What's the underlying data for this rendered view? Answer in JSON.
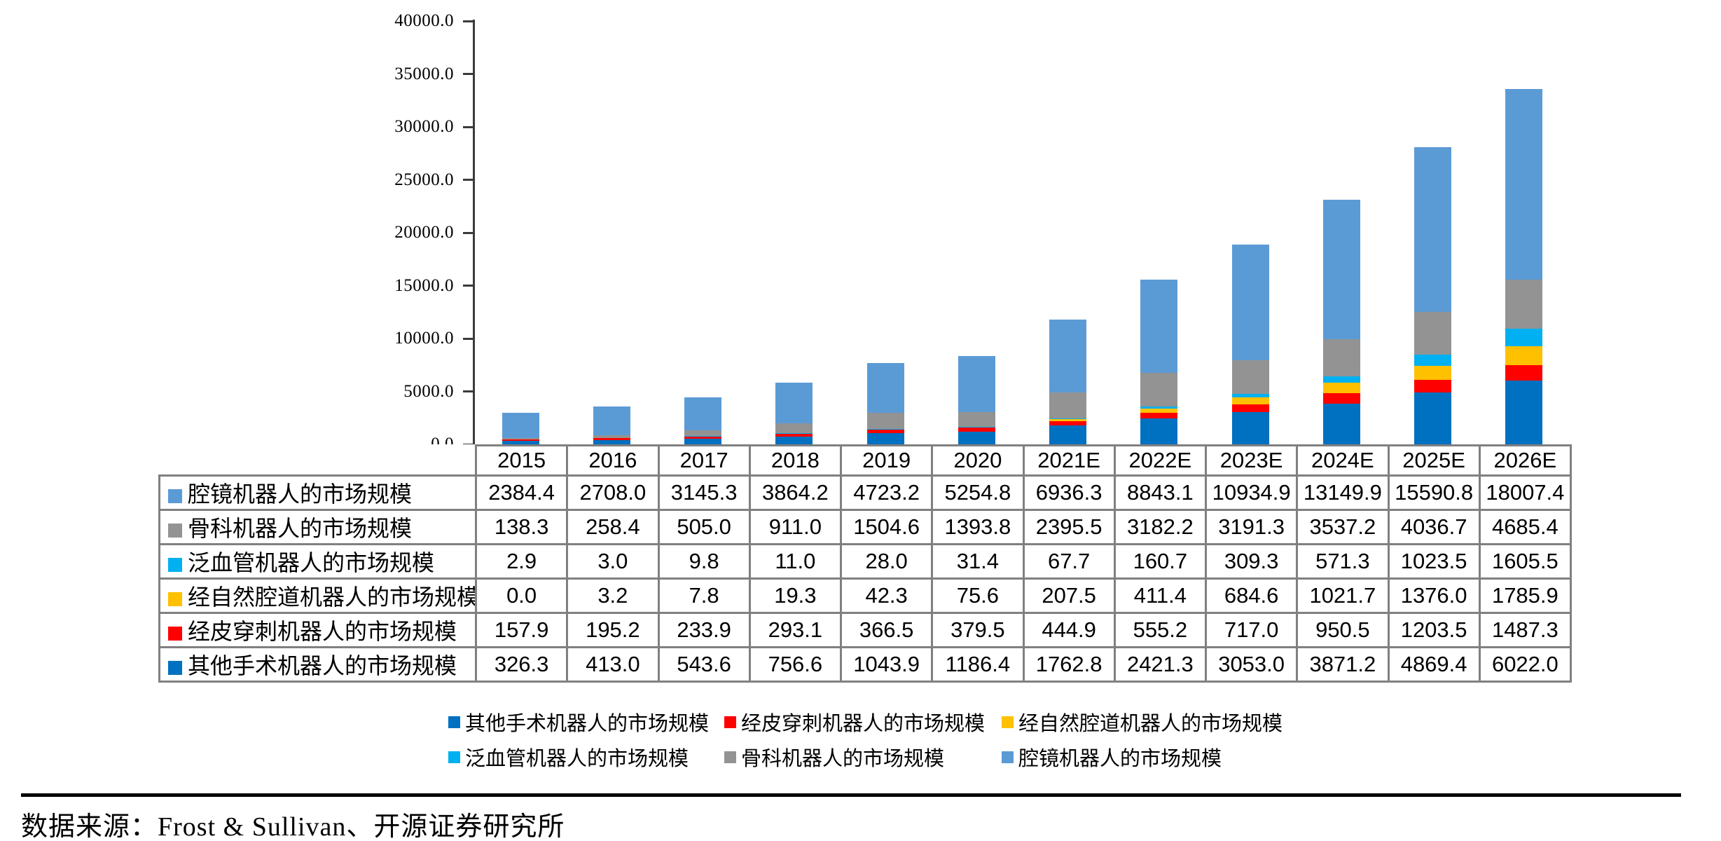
{
  "chart_data": {
    "type": "bar",
    "stacked": true,
    "title": "",
    "xlabel": "",
    "ylabel": "",
    "grid": false,
    "ylim": [
      0,
      40000
    ],
    "ytick_interval": 5000,
    "ytick_labels": [
      "0.0",
      "5000.0",
      "10000.0",
      "15000.0",
      "20000.0",
      "25000.0",
      "30000.0",
      "35000.0",
      "40000.0"
    ],
    "categories": [
      "2015",
      "2016",
      "2017",
      "2018",
      "2019",
      "2020",
      "2021E",
      "2022E",
      "2023E",
      "2024E",
      "2025E",
      "2026E"
    ],
    "series": [
      {
        "name": "腔镜机器人的市场规模",
        "color": "#5B9BD5",
        "values": [
          2384.4,
          2708.0,
          3145.3,
          3864.2,
          4723.2,
          5254.8,
          6936.3,
          8843.1,
          10934.9,
          13149.9,
          15590.8,
          18007.4
        ]
      },
      {
        "name": "骨科机器人的市场规模",
        "color": "#939393",
        "values": [
          138.3,
          258.4,
          505.0,
          911.0,
          1504.6,
          1393.8,
          2395.5,
          3182.2,
          3191.3,
          3537.2,
          4036.7,
          4685.4
        ]
      },
      {
        "name": "泛血管机器人的市场规模",
        "color": "#00B0F0",
        "values": [
          2.9,
          3.0,
          9.8,
          11.0,
          28.0,
          31.4,
          67.7,
          160.7,
          309.3,
          571.3,
          1023.5,
          1605.5
        ]
      },
      {
        "name": "经自然腔道机器人的市场规模",
        "color": "#FFC000",
        "values": [
          0.0,
          3.2,
          7.8,
          19.3,
          42.3,
          75.6,
          207.5,
          411.4,
          684.6,
          1021.7,
          1376.0,
          1785.9
        ]
      },
      {
        "name": "经皮穿刺机器人的市场规模",
        "color": "#FF0000",
        "values": [
          157.9,
          195.2,
          233.9,
          293.1,
          366.5,
          379.5,
          444.9,
          555.2,
          717.0,
          950.5,
          1203.5,
          1487.3
        ]
      },
      {
        "name": "其他手术机器人的市场规模",
        "color": "#0070C0",
        "values": [
          326.3,
          413.0,
          543.6,
          756.6,
          1043.9,
          1186.4,
          1762.8,
          2421.3,
          3053.0,
          3871.2,
          4869.4,
          6022.0
        ]
      }
    ],
    "stack_order_bottom_to_top": [
      "其他手术机器人的市场规模",
      "经皮穿刺机器人的市场规模",
      "经自然腔道机器人的市场规模",
      "泛血管机器人的市场规模",
      "骨科机器人的市场规模",
      "腔镜机器人的市场规模"
    ],
    "legend_position": "bottom",
    "legend_rows": [
      [
        "其他手术机器人的市场规模",
        "经皮穿刺机器人的市场规模",
        "经自然腔道机器人的市场规模"
      ],
      [
        "泛血管机器人的市场规模",
        "骨科机器人的市场规模",
        "腔镜机器人的市场规模"
      ]
    ]
  },
  "footer": {
    "source_text": "数据来源：Frost & Sullivan、开源证券研究所"
  }
}
